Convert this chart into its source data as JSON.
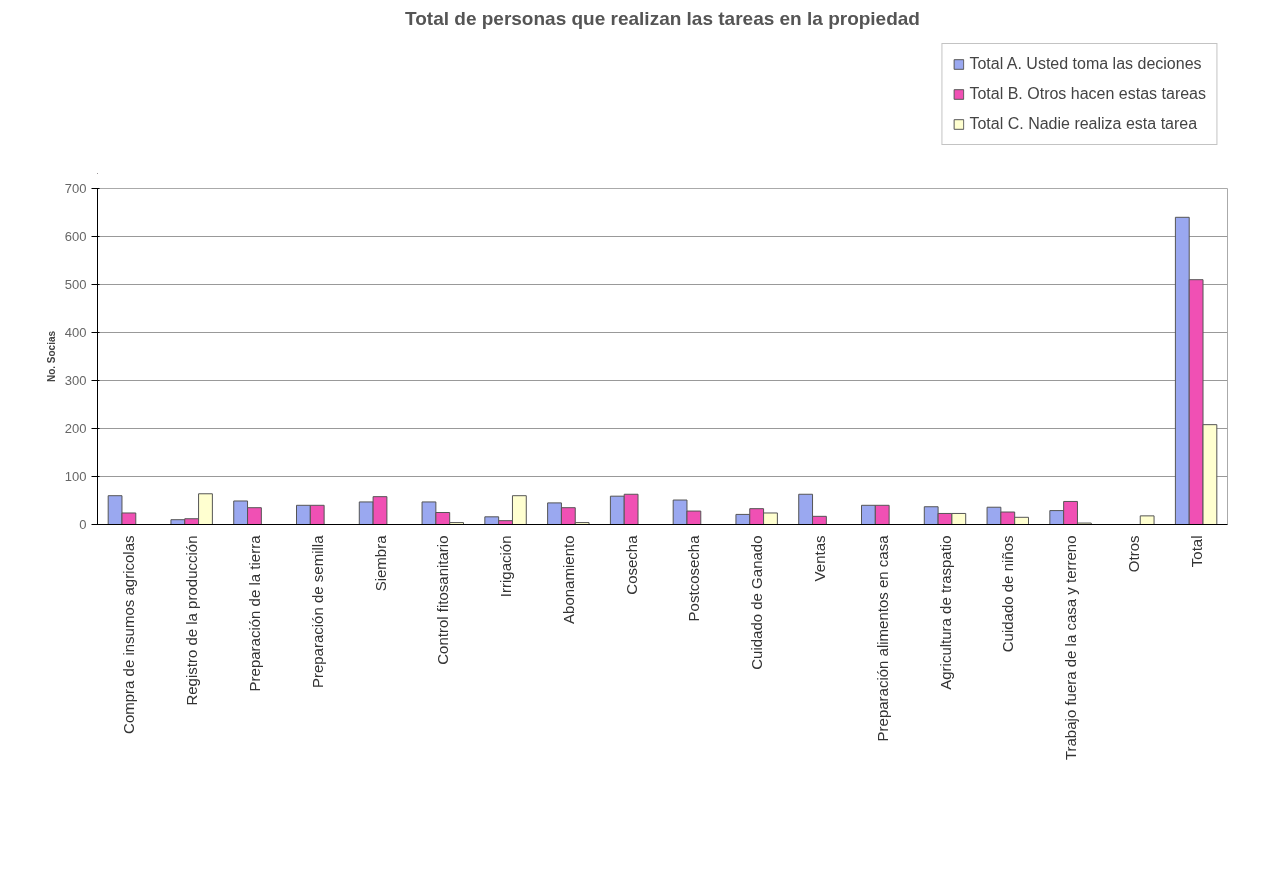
{
  "chart_data": {
    "type": "bar",
    "title": "Total de personas que realizan las tareas en la propiedad",
    "ylabel": "No. Socias",
    "categories": [
      "Compra de insumos agricolas",
      "Registro de la producción",
      "Preparación de la tierra",
      "Preparación de semilla",
      "Siembra",
      "Control fitosanitario",
      "Irrigación",
      "Abonamiento",
      "Cosecha",
      "Postcosecha",
      "Cuidado de Ganado",
      "Ventas",
      "Preparación alimentos en casa",
      "Agricultura de traspatio",
      "Cuidado de niños",
      "Trabajo fuera de la casa y terreno",
      "Otros",
      "Total"
    ],
    "series": [
      {
        "name": "Total A. Usted toma las deciones",
        "color": "#9aa8f0",
        "values": [
          60,
          10,
          49,
          40,
          47,
          47,
          16,
          45,
          59,
          51,
          21,
          63,
          40,
          37,
          36,
          29,
          0,
          640
        ]
      },
      {
        "name": "Total B. Otros hacen estas tareas",
        "color": "#f050b4",
        "values": [
          24,
          12,
          35,
          40,
          58,
          25,
          8,
          35,
          63,
          28,
          33,
          17,
          40,
          23,
          26,
          48,
          0,
          510
        ]
      },
      {
        "name": "Total C. Nadie realiza esta tarea",
        "color": "#ffffd0",
        "values": [
          0,
          64,
          0,
          0,
          0,
          4,
          60,
          4,
          0,
          0,
          24,
          0,
          0,
          23,
          15,
          3,
          18,
          208
        ]
      }
    ],
    "ylim": [
      0,
      700
    ],
    "yticks": [
      0,
      100,
      200,
      300,
      400,
      500,
      600,
      700
    ],
    "grid": "y",
    "legend": "top right"
  }
}
